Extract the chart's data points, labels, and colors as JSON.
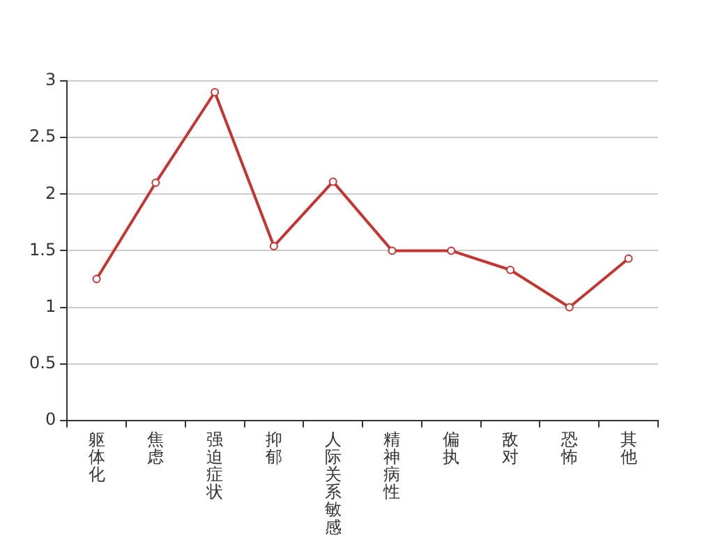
{
  "chart_data": {
    "type": "line",
    "categories": [
      "躯体化",
      "焦虑",
      "强迫症状",
      "抑郁",
      "人际关系敏感",
      "精神病性",
      "偏执",
      "敌对",
      "恐怖",
      "其他"
    ],
    "series": [
      {
        "color": "#c23531",
        "values": [
          1.25,
          2.1,
          2.9,
          1.54,
          2.11,
          1.5,
          1.5,
          1.33,
          1.0,
          1.43
        ]
      }
    ],
    "ylim": [
      0,
      3
    ],
    "yticks": [
      0,
      0.5,
      1,
      1.5,
      2,
      2.5,
      3
    ],
    "grid": "y",
    "legend": false,
    "marker": "circle",
    "line_style": "solid"
  }
}
